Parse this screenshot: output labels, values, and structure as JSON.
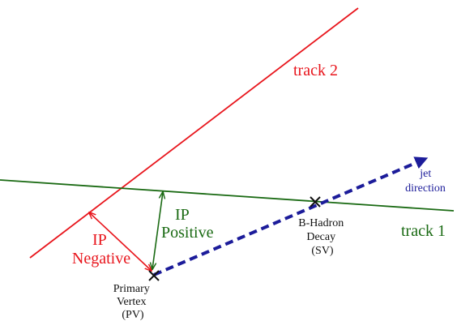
{
  "colors": {
    "track2": "#e8151c",
    "track1": "#1a6a13",
    "jet": "#1c1c9a",
    "vertex": "#111111",
    "background": "#ffffff"
  },
  "labels": {
    "track2": "track 2",
    "track1": "track 1",
    "ip_negative": [
      "IP",
      "Negative"
    ],
    "ip_positive": [
      "IP",
      "Positive"
    ],
    "jet_direction": [
      "jet",
      "direction"
    ],
    "sv": [
      "B-Hadron",
      "Decay",
      "(SV)"
    ],
    "pv": [
      "Primary",
      "Vertex",
      "(PV)"
    ]
  }
}
